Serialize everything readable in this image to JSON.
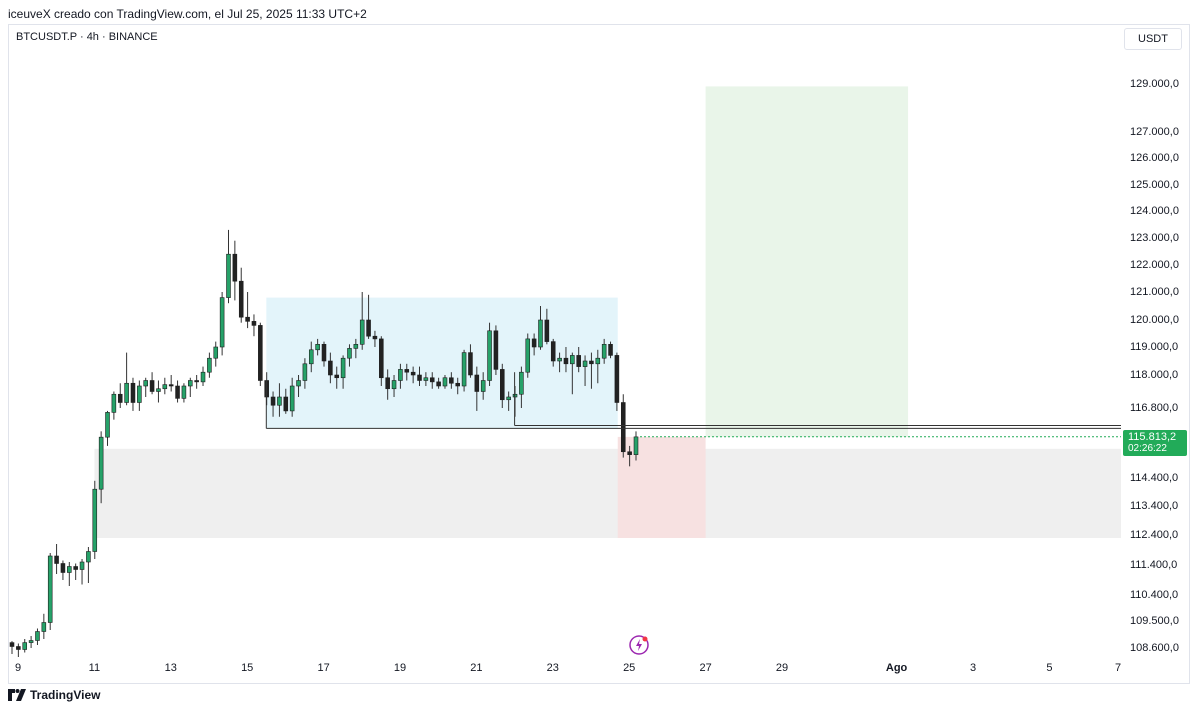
{
  "header": {
    "attribution": "iceuveX creado con TradingView.com, el Jul 25, 2025 11:33 UTC+2"
  },
  "symbol_line": "BTCUSDT.P · 4h · BINANCE",
  "currency": "USDT",
  "last_price": {
    "value": "115.813,2",
    "countdown": "02:26:22",
    "color": "#22ab59"
  },
  "footer": {
    "brand": "TradingView",
    "logo_icon": "tradingview-logo-icon"
  },
  "event_icon": "lightning-event-icon",
  "colors": {
    "up": "#26a269",
    "down": "#222222",
    "range_box": "#e3f4fa",
    "target_box": "#e9f5e9",
    "stop_box": "#f7e1e1",
    "zone_box": "#efefef"
  },
  "chart_data": {
    "type": "candlestick",
    "title": "",
    "y_axis": {
      "ticks": [
        {
          "value": 129000,
          "label": "129.000,0"
        },
        {
          "value": 127000,
          "label": "127.000,0"
        },
        {
          "value": 126000,
          "label": "126.000,0"
        },
        {
          "value": 125000,
          "label": "125.000,0"
        },
        {
          "value": 124000,
          "label": "124.000,0"
        },
        {
          "value": 123000,
          "label": "123.000,0"
        },
        {
          "value": 122000,
          "label": "122.000,0"
        },
        {
          "value": 121000,
          "label": "121.000,0"
        },
        {
          "value": 120000,
          "label": "120.000,0"
        },
        {
          "value": 119000,
          "label": "119.000,0"
        },
        {
          "value": 118000,
          "label": "118.000,0"
        },
        {
          "value": 116800,
          "label": "116.800,0"
        },
        {
          "value": 114400,
          "label": "114.400,0"
        },
        {
          "value": 113400,
          "label": "113.400,0"
        },
        {
          "value": 112400,
          "label": "112.400,0"
        },
        {
          "value": 111400,
          "label": "111.400,0"
        },
        {
          "value": 110400,
          "label": "110.400,0"
        },
        {
          "value": 109500,
          "label": "109.500,0"
        },
        {
          "value": 108600,
          "label": "108.600,0"
        }
      ]
    },
    "x_axis": {
      "ticks": [
        {
          "day": 9,
          "label": "9"
        },
        {
          "day": 11,
          "label": "11"
        },
        {
          "day": 13,
          "label": "13"
        },
        {
          "day": 15,
          "label": "15"
        },
        {
          "day": 17,
          "label": "17"
        },
        {
          "day": 19,
          "label": "19"
        },
        {
          "day": 21,
          "label": "21"
        },
        {
          "day": 23,
          "label": "23"
        },
        {
          "day": 25,
          "label": "25"
        },
        {
          "day": 27,
          "label": "27"
        },
        {
          "day": 29,
          "label": "29"
        },
        {
          "day": 32,
          "label": "Ago"
        },
        {
          "day": 34,
          "label": "3"
        },
        {
          "day": 36,
          "label": "5"
        },
        {
          "day": 38,
          "label": "7"
        }
      ]
    },
    "candles": [
      [
        108780,
        108830,
        108400,
        108650
      ],
      [
        108650,
        108750,
        108300,
        108550
      ],
      [
        108550,
        108900,
        108450,
        108780
      ],
      [
        108780,
        109000,
        108600,
        108850
      ],
      [
        108850,
        109250,
        108700,
        109150
      ],
      [
        109150,
        109750,
        108900,
        109450
      ],
      [
        109450,
        111800,
        109200,
        111700
      ],
      [
        111700,
        112100,
        111100,
        111450
      ],
      [
        111450,
        111550,
        110900,
        111150
      ],
      [
        111150,
        111500,
        110700,
        111350
      ],
      [
        111350,
        111450,
        110900,
        111250
      ],
      [
        111250,
        111600,
        110750,
        111500
      ],
      [
        111500,
        112000,
        110800,
        111850
      ],
      [
        111850,
        114300,
        111600,
        114000
      ],
      [
        114000,
        116000,
        113500,
        115800
      ],
      [
        115800,
        116700,
        115500,
        116650
      ],
      [
        116650,
        117400,
        116400,
        117300
      ],
      [
        117300,
        117700,
        116800,
        117000
      ],
      [
        117000,
        118800,
        116900,
        117700
      ],
      [
        117700,
        117900,
        116700,
        117000
      ],
      [
        117000,
        117800,
        116700,
        117600
      ],
      [
        117600,
        117900,
        117200,
        117800
      ],
      [
        117800,
        118100,
        117300,
        117400
      ],
      [
        117400,
        117800,
        117000,
        117500
      ],
      [
        117500,
        117900,
        117300,
        117650
      ],
      [
        117650,
        118000,
        117400,
        117600
      ],
      [
        117600,
        117800,
        117000,
        117150
      ],
      [
        117150,
        117700,
        117000,
        117600
      ],
      [
        117600,
        117900,
        117200,
        117800
      ],
      [
        117800,
        118000,
        117500,
        117750
      ],
      [
        117750,
        118300,
        117600,
        118100
      ],
      [
        118100,
        118800,
        117900,
        118600
      ],
      [
        118600,
        119200,
        118300,
        119000
      ],
      [
        119000,
        121000,
        118700,
        120800
      ],
      [
        120800,
        123300,
        120600,
        122400
      ],
      [
        122400,
        122900,
        120700,
        121400
      ],
      [
        121400,
        121900,
        119900,
        120100
      ],
      [
        120100,
        121000,
        119700,
        119950
      ],
      [
        119950,
        120200,
        119400,
        119800
      ],
      [
        119800,
        119900,
        117600,
        117800
      ],
      [
        117800,
        118100,
        116900,
        117200
      ],
      [
        117200,
        117400,
        116500,
        116900
      ],
      [
        116900,
        117700,
        116500,
        117200
      ],
      [
        117200,
        117500,
        116600,
        116700
      ],
      [
        116700,
        117900,
        116500,
        117600
      ],
      [
        117600,
        118000,
        117200,
        117800
      ],
      [
        117800,
        118600,
        117500,
        118400
      ],
      [
        118400,
        119200,
        118100,
        118900
      ],
      [
        118900,
        119300,
        118700,
        119100
      ],
      [
        119100,
        119200,
        118300,
        118500
      ],
      [
        118500,
        118800,
        117700,
        118000
      ],
      [
        118000,
        118300,
        117500,
        117900
      ],
      [
        117900,
        118700,
        117500,
        118600
      ],
      [
        118600,
        119100,
        118300,
        118950
      ],
      [
        118950,
        119300,
        118600,
        119100
      ],
      [
        119100,
        121000,
        118900,
        120000
      ],
      [
        120000,
        120900,
        119300,
        119400
      ],
      [
        119400,
        119600,
        119000,
        119300
      ],
      [
        119300,
        119400,
        117600,
        117900
      ],
      [
        117900,
        118200,
        117100,
        117500
      ],
      [
        117500,
        118000,
        117200,
        117800
      ],
      [
        117800,
        118400,
        117500,
        118200
      ],
      [
        118200,
        118400,
        117800,
        118100
      ],
      [
        118100,
        118300,
        117700,
        118000
      ],
      [
        118000,
        118300,
        117600,
        117800
      ],
      [
        117800,
        118100,
        117600,
        117900
      ],
      [
        117900,
        118100,
        117500,
        117750
      ],
      [
        117750,
        117900,
        117500,
        117600
      ],
      [
        117600,
        118000,
        117500,
        117900
      ],
      [
        117900,
        118100,
        117500,
        117700
      ],
      [
        117700,
        117900,
        117300,
        117600
      ],
      [
        117600,
        118900,
        117400,
        118800
      ],
      [
        118800,
        119100,
        117900,
        118000
      ],
      [
        118000,
        118300,
        116700,
        117400
      ],
      [
        117400,
        118100,
        117100,
        117800
      ],
      [
        117800,
        119900,
        117600,
        119600
      ],
      [
        119600,
        119800,
        118000,
        118200
      ],
      [
        118200,
        118400,
        116800,
        117100
      ],
      [
        117100,
        117400,
        116700,
        117200
      ],
      [
        117200,
        117600,
        116500,
        117300
      ],
      [
        117300,
        118300,
        116800,
        118100
      ],
      [
        118100,
        119500,
        117900,
        119300
      ],
      [
        119300,
        119500,
        118700,
        119000
      ],
      [
        119000,
        120500,
        118900,
        120000
      ],
      [
        120000,
        120400,
        119100,
        119200
      ],
      [
        119200,
        119300,
        118300,
        118500
      ],
      [
        118500,
        118800,
        118100,
        118600
      ],
      [
        118600,
        119000,
        118100,
        118400
      ],
      [
        118400,
        118800,
        117300,
        118700
      ],
      [
        118700,
        119000,
        118100,
        118300
      ],
      [
        118300,
        118700,
        117600,
        118500
      ],
      [
        118500,
        118800,
        117500,
        118400
      ],
      [
        118400,
        118900,
        117700,
        118600
      ],
      [
        118600,
        119300,
        118400,
        119100
      ],
      [
        119100,
        119200,
        118600,
        118700
      ],
      [
        118700,
        118800,
        116700,
        117000
      ],
      [
        117000,
        117300,
        115100,
        115300
      ],
      [
        115300,
        115500,
        114800,
        115200
      ],
      [
        115200,
        116000,
        115000,
        115810
      ]
    ],
    "annotations": [
      {
        "type": "range_box",
        "high": 120800,
        "low": 116100,
        "start_day": 15.5,
        "end_day": 24.7
      },
      {
        "type": "demand_zone",
        "high": 115400,
        "low": 112300,
        "start_day": 11,
        "end_day": 38
      },
      {
        "type": "take_profit_box",
        "high": 128900,
        "low": 115810,
        "start_day": 27,
        "end_day": 32.3
      },
      {
        "type": "stop_loss_box",
        "high": 115810,
        "low": 112300,
        "start_day": 24.7,
        "end_day": 27
      },
      {
        "type": "level_line",
        "price": 116100,
        "start_day": 15.5,
        "end_day": 38
      },
      {
        "type": "level_line",
        "price": 116200,
        "start_day": 22,
        "end_day": 38
      }
    ],
    "last_price": 115813.2
  }
}
